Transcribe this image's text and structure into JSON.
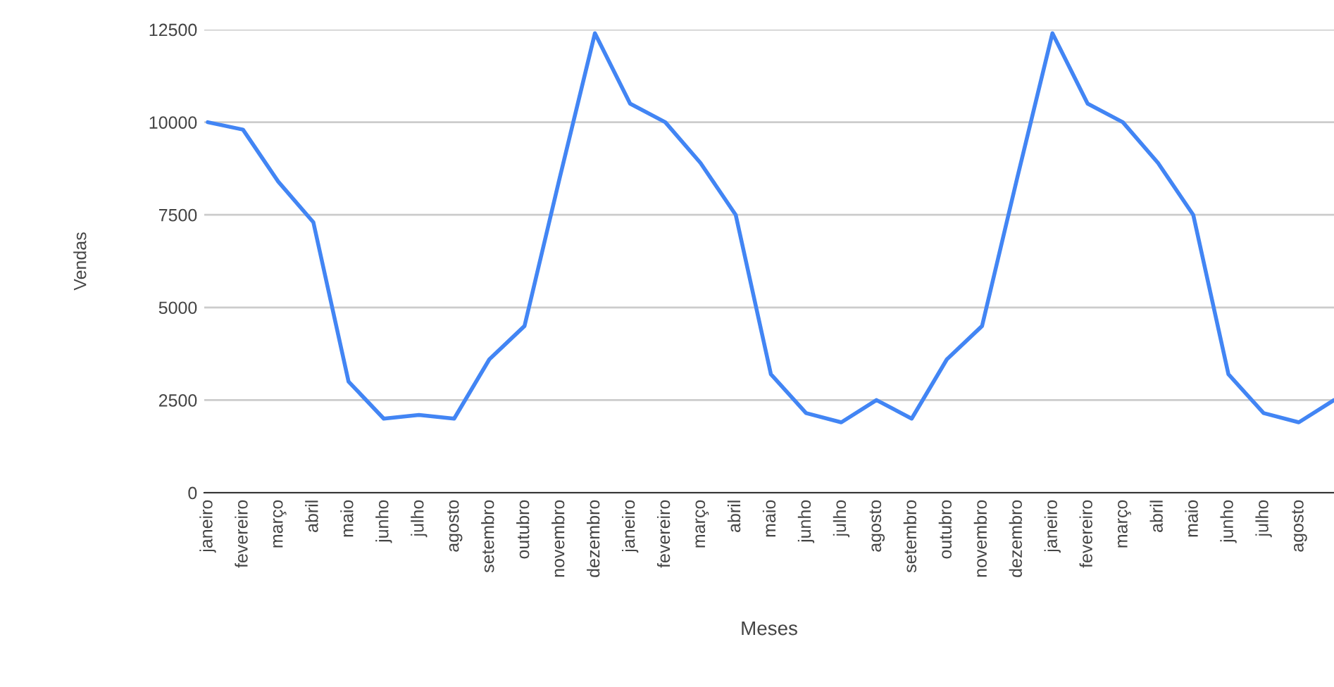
{
  "chart_data": {
    "type": "line",
    "xlabel": "Meses",
    "ylabel": "Vendas",
    "categories": [
      "janeiro",
      "fevereiro",
      "março",
      "abril",
      "maio",
      "junho",
      "julho",
      "agosto",
      "setembro",
      "outubro",
      "novembro",
      "dezembro",
      "janeiro",
      "fevereiro",
      "março",
      "abril",
      "maio",
      "junho",
      "julho",
      "agosto",
      "setembro",
      "outubro",
      "novembro",
      "dezembro",
      "janeiro",
      "fevereiro",
      "março",
      "abril",
      "maio",
      "junho",
      "julho",
      "agosto",
      null
    ],
    "series": [
      {
        "color": "#4285f4",
        "values": [
          10000,
          9800,
          8400,
          7300,
          3000,
          2000,
          2100,
          2000,
          3600,
          4500,
          8500,
          12400,
          10500,
          10000,
          8900,
          7500,
          3200,
          2150,
          1900,
          2500,
          2000,
          3600,
          4500,
          8500,
          12400,
          10500,
          10000,
          8900,
          7500,
          3200,
          2150,
          1900,
          2500
        ]
      }
    ],
    "ylim": [
      0,
      12500
    ],
    "yticks": [
      0,
      2500,
      5000,
      7500,
      10000,
      12500
    ],
    "grid": "y",
    "marker": "none",
    "line_style": "solid"
  }
}
